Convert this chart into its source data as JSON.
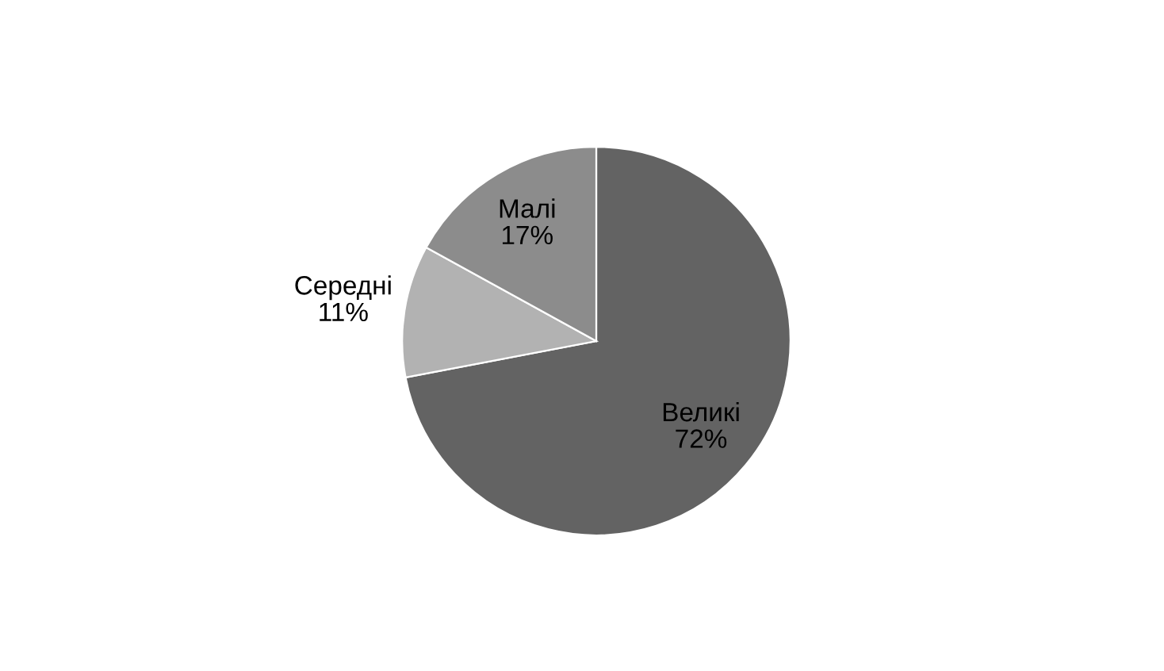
{
  "chart_data": {
    "type": "pie",
    "categories": [
      "Великі",
      "Середні",
      "Малі"
    ],
    "values": [
      72,
      11,
      17
    ],
    "colors": [
      "#636363",
      "#b2b2b2",
      "#8c8c8c"
    ],
    "value_labels": [
      "72%",
      "11%",
      "17%"
    ],
    "legend": false
  }
}
